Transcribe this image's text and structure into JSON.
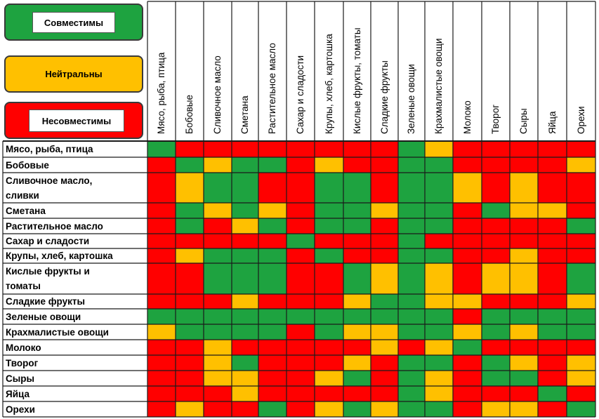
{
  "legend": {
    "compatible": "Совместимы",
    "neutral": "Нейтральны",
    "incompatible": "Несовместимы"
  },
  "colors": {
    "G": "#1ea340",
    "Y": "#ffc000",
    "R": "#ff0000",
    "grid": "#1a1a1a",
    "legend_green": "#1ea340",
    "legend_yellow": "#ffc000",
    "legend_red": "#ff0000"
  },
  "chart_data": {
    "type": "heatmap",
    "title": "",
    "value_key": {
      "G": "Совместимы",
      "Y": "Нейтральны",
      "R": "Несовместимы"
    },
    "rows": [
      "Мясо, рыба, птица",
      "Бобовые",
      [
        "Сливочное масло,",
        "сливки"
      ],
      "Сметана",
      "Растительное масло",
      "Сахар и сладости",
      "Крупы, хлеб, картошка",
      [
        "Кислые фрукты и",
        "томаты"
      ],
      "Сладкие фрукты",
      "Зеленые овощи",
      "Крахмалистые овощи",
      "Молоко",
      "Творог",
      "Сыры",
      "Яйца",
      "Орехи"
    ],
    "columns": [
      "Мясо, рыба, птица",
      "Бобовые",
      "Сливочное масло",
      "Сметана",
      "Растительное масло",
      "Сахар и сладости",
      "Крупы, хлеб, картошка",
      "Кислые фрукты, томаты",
      "Сладкие фрукты",
      "Зеленые овощи",
      "Крахмалистые овощи",
      "Молоко",
      "Творог",
      "Сыры",
      "Яйца",
      "Орехи"
    ],
    "values": [
      [
        "G",
        "R",
        "R",
        "R",
        "R",
        "R",
        "R",
        "R",
        "R",
        "G",
        "Y",
        "R",
        "R",
        "R",
        "R",
        "R"
      ],
      [
        "R",
        "G",
        "Y",
        "G",
        "G",
        "R",
        "Y",
        "R",
        "R",
        "G",
        "G",
        "R",
        "R",
        "R",
        "R",
        "Y"
      ],
      [
        "R",
        "Y",
        "G",
        "G",
        "R",
        "R",
        "G",
        "G",
        "R",
        "G",
        "G",
        "Y",
        "R",
        "Y",
        "R",
        "R"
      ],
      [
        "R",
        "G",
        "Y",
        "G",
        "Y",
        "R",
        "G",
        "G",
        "Y",
        "G",
        "G",
        "R",
        "G",
        "Y",
        "Y",
        "R"
      ],
      [
        "R",
        "G",
        "R",
        "Y",
        "G",
        "R",
        "G",
        "G",
        "R",
        "G",
        "G",
        "R",
        "R",
        "R",
        "R",
        "G"
      ],
      [
        "R",
        "R",
        "R",
        "R",
        "R",
        "G",
        "R",
        "R",
        "R",
        "G",
        "R",
        "R",
        "R",
        "R",
        "R",
        "R"
      ],
      [
        "R",
        "Y",
        "G",
        "G",
        "G",
        "R",
        "G",
        "R",
        "R",
        "G",
        "G",
        "R",
        "R",
        "Y",
        "R",
        "R"
      ],
      [
        "R",
        "R",
        "G",
        "G",
        "G",
        "R",
        "R",
        "G",
        "Y",
        "G",
        "Y",
        "R",
        "Y",
        "Y",
        "R",
        "G"
      ],
      [
        "R",
        "R",
        "R",
        "Y",
        "R",
        "R",
        "R",
        "Y",
        "G",
        "G",
        "Y",
        "Y",
        "R",
        "R",
        "R",
        "Y"
      ],
      [
        "G",
        "G",
        "G",
        "G",
        "G",
        "G",
        "G",
        "G",
        "G",
        "G",
        "G",
        "R",
        "G",
        "G",
        "G",
        "G"
      ],
      [
        "Y",
        "G",
        "G",
        "G",
        "G",
        "R",
        "G",
        "Y",
        "Y",
        "G",
        "G",
        "Y",
        "G",
        "Y",
        "G",
        "G"
      ],
      [
        "R",
        "R",
        "Y",
        "R",
        "R",
        "R",
        "R",
        "R",
        "Y",
        "R",
        "Y",
        "G",
        "R",
        "R",
        "R",
        "R"
      ],
      [
        "R",
        "R",
        "Y",
        "G",
        "R",
        "R",
        "R",
        "Y",
        "R",
        "G",
        "G",
        "R",
        "G",
        "Y",
        "R",
        "Y"
      ],
      [
        "R",
        "R",
        "Y",
        "Y",
        "R",
        "R",
        "Y",
        "G",
        "R",
        "G",
        "Y",
        "R",
        "G",
        "G",
        "R",
        "Y"
      ],
      [
        "R",
        "R",
        "R",
        "Y",
        "R",
        "R",
        "R",
        "R",
        "R",
        "G",
        "Y",
        "R",
        "R",
        "R",
        "G",
        "R"
      ],
      [
        "R",
        "Y",
        "R",
        "R",
        "G",
        "R",
        "Y",
        "G",
        "Y",
        "G",
        "G",
        "R",
        "Y",
        "Y",
        "R",
        "G"
      ]
    ]
  }
}
